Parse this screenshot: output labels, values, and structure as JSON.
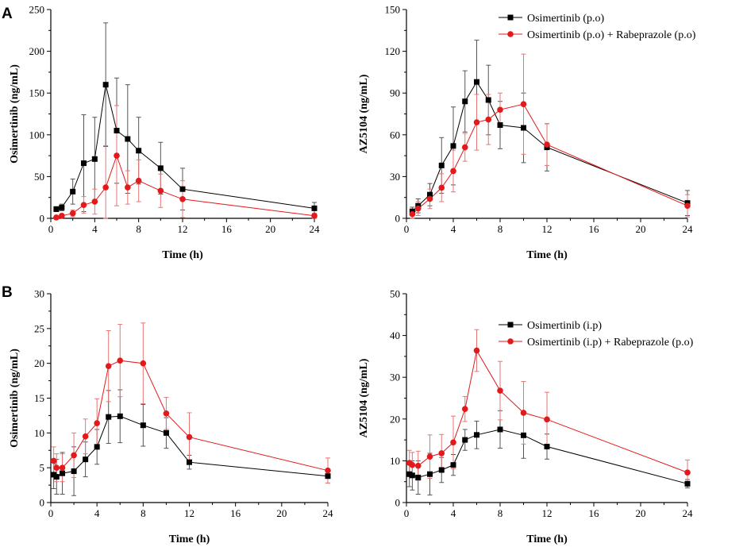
{
  "chart_data": [
    {
      "panel": "A",
      "type": "line",
      "title": "",
      "xlabel": "Time (h)",
      "ylabel": "Osimertinib (ng/mL)",
      "xlim": [
        0,
        24
      ],
      "ylim": [
        0,
        250
      ],
      "xticks": [
        0,
        4,
        8,
        12,
        16,
        20,
        24
      ],
      "yticks": [
        0,
        50,
        100,
        150,
        200,
        250
      ],
      "grid": false,
      "legend": null,
      "series": [
        {
          "name": "Osimertinib (p.o)",
          "color": "#000000",
          "marker": "square",
          "x": [
            0.5,
            1,
            2,
            3,
            4,
            5,
            6,
            7,
            8,
            10,
            12,
            24
          ],
          "y": [
            11,
            13,
            32,
            66,
            71,
            160,
            105,
            95,
            81,
            60,
            35,
            12
          ],
          "err": [
            3,
            4,
            15,
            58,
            50,
            74,
            63,
            65,
            40,
            31,
            25,
            7
          ]
        },
        {
          "name": "Osimertinib (p.o) + Rabeprazole (p.o)",
          "color": "#e31a1c",
          "marker": "circle",
          "x": [
            0.5,
            1,
            2,
            3,
            4,
            5,
            6,
            7,
            8,
            10,
            12,
            24
          ],
          "y": [
            1,
            3,
            6,
            16,
            20,
            37,
            75,
            37,
            45,
            33,
            23,
            3
          ],
          "err": [
            1,
            2,
            4,
            10,
            15,
            50,
            60,
            20,
            25,
            20,
            22,
            3
          ]
        }
      ]
    },
    {
      "panel": "",
      "type": "line",
      "title": "",
      "xlabel": "Time (h)",
      "ylabel": "AZ5104 (ng/mL)",
      "xlim": [
        0,
        24
      ],
      "ylim": [
        0,
        150
      ],
      "xticks": [
        0,
        4,
        8,
        12,
        16,
        20,
        24
      ],
      "yticks": [
        0,
        30,
        60,
        90,
        120,
        150
      ],
      "grid": false,
      "legend": "top-right",
      "series": [
        {
          "name": "Osimertinib (p.o)",
          "color": "#000000",
          "marker": "square",
          "x": [
            0.5,
            1,
            2,
            3,
            4,
            5,
            6,
            7,
            8,
            10,
            12,
            24
          ],
          "y": [
            5,
            9,
            17,
            38,
            52,
            84,
            98,
            85,
            67,
            65,
            51,
            11
          ],
          "err": [
            3,
            5,
            8,
            20,
            28,
            22,
            30,
            25,
            17,
            25,
            17,
            9
          ]
        },
        {
          "name": "Osimertinib (p.o) + Rabeprazole (p.o)",
          "color": "#e31a1c",
          "marker": "circle",
          "x": [
            0.5,
            1,
            2,
            3,
            4,
            5,
            6,
            7,
            8,
            10,
            12,
            24
          ],
          "y": [
            3,
            7,
            14,
            22,
            34,
            51,
            69,
            71,
            78,
            82,
            53,
            9
          ],
          "err": [
            3,
            5,
            7,
            10,
            15,
            10,
            20,
            18,
            12,
            36,
            15,
            8
          ]
        }
      ]
    },
    {
      "panel": "B",
      "type": "line",
      "title": "",
      "xlabel": "Time (h)",
      "ylabel": "Osimertinib (ng/mL)",
      "xlim": [
        0,
        24
      ],
      "ylim": [
        0,
        30
      ],
      "xticks": [
        0,
        4,
        8,
        12,
        16,
        20,
        24
      ],
      "yticks": [
        0,
        5,
        10,
        15,
        20,
        25,
        30
      ],
      "grid": false,
      "legend": null,
      "series": [
        {
          "name": "Osimertinib (i.p)",
          "color": "#000000",
          "marker": "square",
          "x": [
            0.25,
            0.5,
            1,
            2,
            3,
            4,
            5,
            6,
            8,
            10,
            12,
            24
          ],
          "y": [
            4,
            3.7,
            4.2,
            4.5,
            6.2,
            8,
            12.3,
            12.4,
            11.1,
            10,
            5.8,
            3.8
          ],
          "err": [
            2,
            2.5,
            3,
            3.5,
            2.5,
            2.5,
            3.8,
            3.8,
            3,
            2.2,
            1,
            1
          ]
        },
        {
          "name": "Osimertinib (i.p) + Rabeprazole (p.o)",
          "color": "#e31a1c",
          "marker": "circle",
          "x": [
            0.25,
            0.5,
            1,
            2,
            3,
            4,
            5,
            6,
            8,
            10,
            12,
            24
          ],
          "y": [
            6,
            5,
            5,
            6.8,
            9.5,
            11.4,
            19.6,
            20.4,
            20,
            12.8,
            9.4,
            4.6
          ],
          "err": [
            2,
            2,
            2,
            3.2,
            2.5,
            3.5,
            5.1,
            5.2,
            5.8,
            2.3,
            3.5,
            1.8
          ]
        }
      ]
    },
    {
      "panel": "",
      "type": "line",
      "title": "",
      "xlabel": "Time (h)",
      "ylabel": "AZ5104 (ng/mL)",
      "xlim": [
        0,
        24
      ],
      "ylim": [
        0,
        50
      ],
      "xticks": [
        0,
        4,
        8,
        12,
        16,
        20,
        24
      ],
      "yticks": [
        0,
        10,
        20,
        30,
        40,
        50
      ],
      "grid": false,
      "legend": "top-right",
      "series": [
        {
          "name": "Osimertinib (i.p)",
          "color": "#000000",
          "marker": "square",
          "x": [
            0.25,
            0.5,
            1,
            2,
            3,
            4,
            5,
            6,
            8,
            10,
            12,
            24
          ],
          "y": [
            6.8,
            6.5,
            6,
            6.8,
            7.8,
            9,
            15,
            16.2,
            17.5,
            16.1,
            13.4,
            4.5
          ],
          "err": [
            3,
            3.5,
            4,
            5,
            3,
            2.5,
            2.5,
            3.3,
            4.5,
            5.5,
            3,
            1
          ]
        },
        {
          "name": "Osimertinib (i.p) + Rabeprazole (p.o)",
          "color": "#e31a1c",
          "marker": "circle",
          "x": [
            0.25,
            0.5,
            1,
            2,
            3,
            4,
            5,
            6,
            8,
            10,
            12,
            24
          ],
          "y": [
            9.5,
            9,
            8.8,
            11,
            11.8,
            14.4,
            22.4,
            36.4,
            26.8,
            21.5,
            19.9,
            7.2
          ],
          "err": [
            3,
            3,
            3.5,
            5.2,
            4.5,
            6.3,
            3,
            5,
            7,
            7.5,
            6.5,
            3
          ]
        }
      ]
    }
  ]
}
